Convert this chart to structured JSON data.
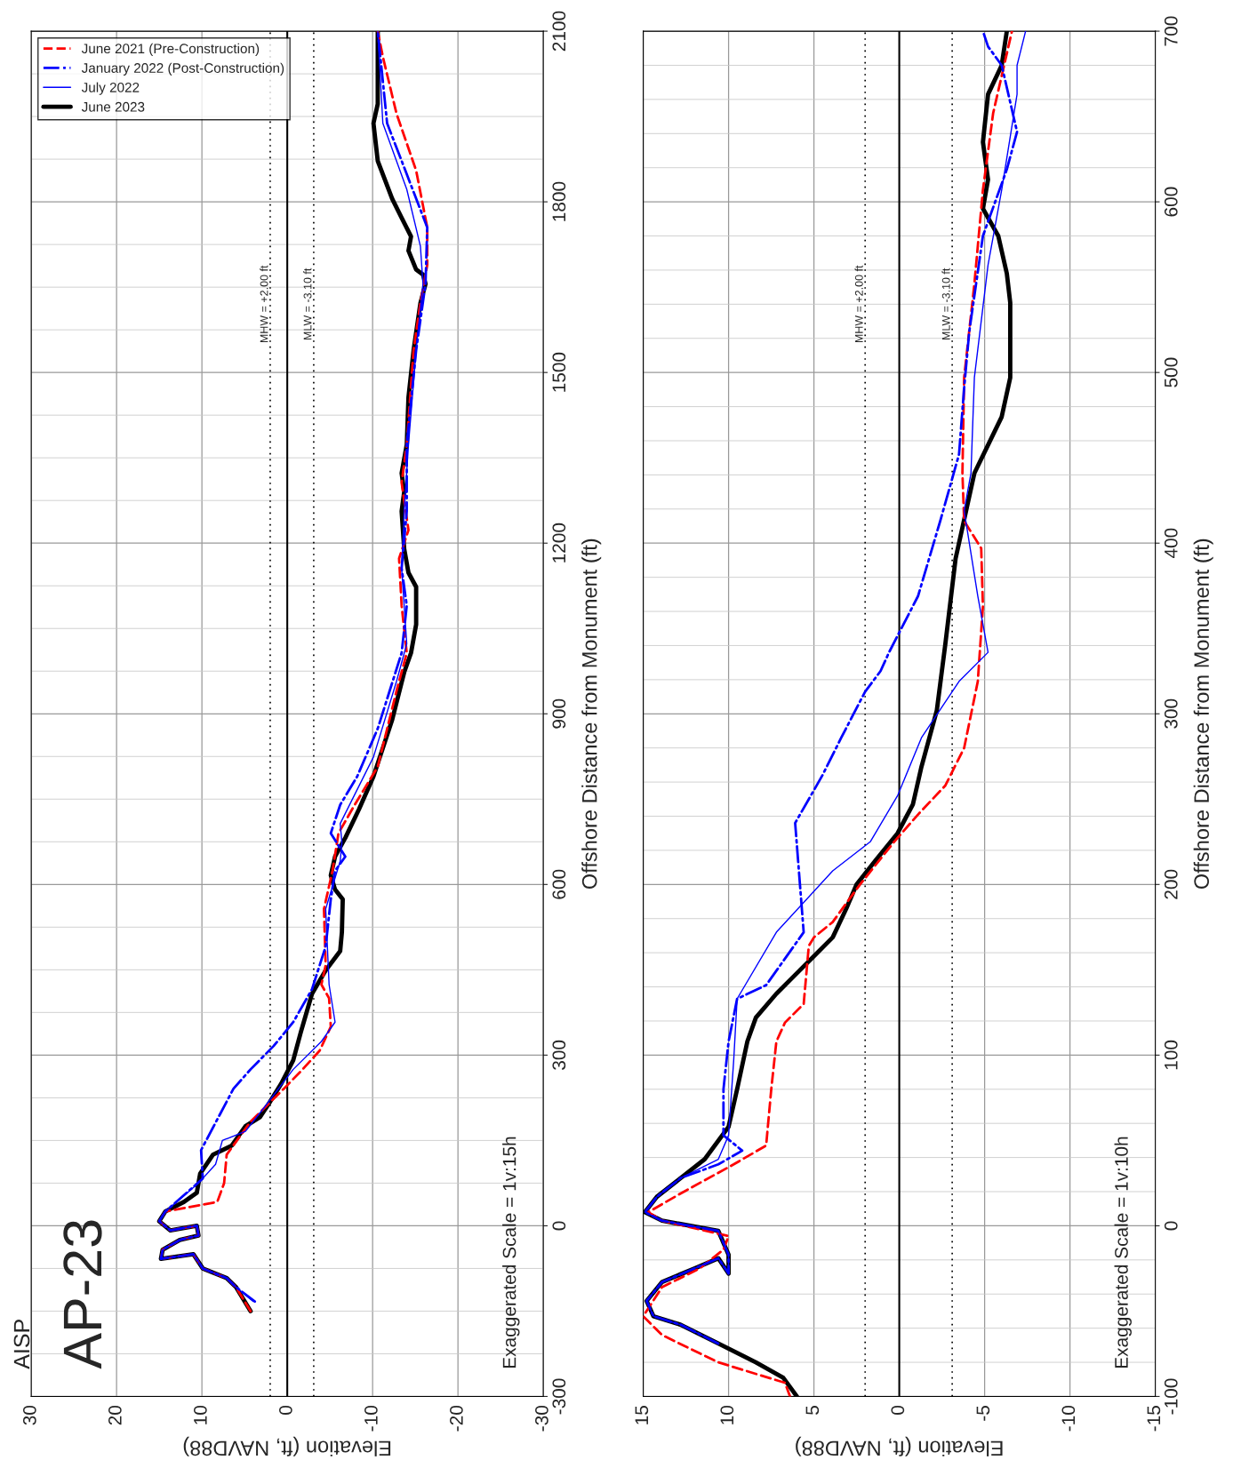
{
  "chart_data": [
    {
      "type": "line",
      "xlabel": "Elevation (ft, NAVD88)",
      "ylabel": "Offshore Distance from Monument (ft)",
      "xlim": [
        30,
        -30
      ],
      "xticks": [
        30,
        20,
        10,
        0,
        -10,
        -20,
        -30
      ],
      "ylim": [
        -300,
        2100
      ],
      "yticks": [
        -300,
        0,
        300,
        600,
        900,
        1200,
        1500,
        1800,
        2100
      ],
      "grid": true,
      "legend": "top left",
      "annotations": [
        "AISP",
        "AP-23",
        "Exaggerated Scale = 1v:15h"
      ],
      "ref_lines": [
        {
          "axis": "x",
          "value": 0,
          "label": null,
          "line_style": "solid"
        },
        {
          "axis": "x",
          "value": 2,
          "label": "MHW = +2.00 ft",
          "line_style": "dotted"
        },
        {
          "axis": "x",
          "value": -3.1,
          "label": "MLW = -3.10 ft",
          "line_style": "dotted"
        }
      ],
      "series": [
        {
          "name": "June 2021 (Pre-Construction)",
          "color": "#ff0000",
          "line_style": "dashed",
          "x": [
            4.3,
            6,
            7.1,
            9.9,
            11,
            14.8,
            14.6,
            12.6,
            10.4,
            10.6,
            13.7,
            15,
            14.3,
            8.2,
            7.4,
            7.1,
            4.3,
            0.4,
            -1.8,
            -3.8,
            -5.1,
            -4.9,
            -4,
            -4.5,
            -4.3,
            -5.3,
            -6,
            -7.9,
            -10.6,
            -12.8,
            -14,
            -13.4,
            -13.1,
            -14.2,
            -13.4,
            -14,
            -14.8,
            -15.6,
            -16.4,
            -16.4,
            -15.1,
            -12.8,
            -11.2,
            -10.6
          ],
          "values": [
            -150,
            -108,
            -92,
            -75,
            -50,
            -58,
            -42,
            -25,
            -17,
            0,
            -8,
            8,
            25,
            42,
            75,
            125,
            183,
            241,
            275,
            308,
            350,
            400,
            424,
            458,
            557,
            624,
            690,
            740,
            807,
            940,
            1007,
            1090,
            1173,
            1223,
            1306,
            1373,
            1539,
            1622,
            1689,
            1755,
            1855,
            1955,
            2055,
            2100
          ]
        },
        {
          "name": "January 2022 (Post-Construction)",
          "color": "#0000ff",
          "line_style": "dashdot",
          "x": [
            3.8,
            6,
            7.1,
            9.9,
            11,
            14.8,
            14.6,
            12.6,
            10.4,
            10.6,
            13.7,
            15,
            14.3,
            9.9,
            10.1,
            6.3,
            4.3,
            1.6,
            -0.7,
            -2.9,
            -4.5,
            -5.1,
            -5.6,
            -6.8,
            -5.1,
            -6.2,
            -8.2,
            -10.6,
            -13.4,
            -14,
            -13.4,
            -14,
            -14,
            -15.1,
            -16.2,
            -16.4,
            -13.4,
            -11.7,
            -10.6
          ],
          "values": [
            -133,
            -108,
            -92,
            -75,
            -50,
            -58,
            -42,
            -25,
            -17,
            0,
            -8,
            8,
            25,
            83,
            133,
            241,
            275,
            316,
            358,
            416,
            491,
            574,
            624,
            649,
            690,
            740,
            790,
            874,
            1007,
            1090,
            1156,
            1256,
            1373,
            1539,
            1656,
            1755,
            1872,
            1938,
            2100
          ]
        },
        {
          "name": "July 2022",
          "color": "#0000ff",
          "line_style": "solid",
          "x": [
            4,
            6,
            7.1,
            9.9,
            11,
            14.8,
            14.6,
            12.6,
            10.4,
            10.6,
            13.7,
            15,
            14.3,
            10.4,
            8.4,
            7.6,
            4.9,
            2.7,
            -0.7,
            -4,
            -5.6,
            -4.9,
            -4.5,
            -6.2,
            -6.4,
            -6.2,
            -10.1,
            -12.8,
            -14,
            -13.4,
            -13.7,
            -14.2,
            -15.1,
            -15.9,
            -15.6,
            -14,
            -11.2,
            -10.6
          ],
          "values": [
            -133,
            -108,
            -92,
            -75,
            -50,
            -58,
            -42,
            -25,
            -17,
            0,
            -8,
            8,
            25,
            75,
            108,
            150,
            166,
            208,
            275,
            324,
            358,
            424,
            557,
            641,
            674,
            707,
            824,
            957,
            1023,
            1156,
            1256,
            1373,
            1539,
            1656,
            1722,
            1822,
            1938,
            2100
          ]
        },
        {
          "name": "June 2023",
          "color": "#000000",
          "line_style": "solid",
          "x": [
            4.3,
            6,
            7.1,
            9.9,
            11,
            14.8,
            14.6,
            12.6,
            10.4,
            10.6,
            13.7,
            15,
            14.3,
            12.1,
            10.6,
            10.2,
            8.7,
            6.5,
            4.9,
            3.2,
            2.1,
            0.7,
            -0.7,
            -1.6,
            -2.9,
            -4.5,
            -6.2,
            -6.4,
            -6.5,
            -5.6,
            -5.1,
            -5.6,
            -6.8,
            -8.4,
            -10.1,
            -11.2,
            -12.3,
            -13.7,
            -14.5,
            -15.1,
            -15.1,
            -14.2,
            -13.7,
            -13.4,
            -13.7,
            -13.4,
            -14,
            -14.2,
            -14.8,
            -15.6,
            -16.2,
            -15.9,
            -15.1,
            -14.2,
            -14.5,
            -13.4,
            -12.3,
            -10.6,
            -10.1,
            -10.6,
            -10.6
          ],
          "values": [
            -150,
            -108,
            -92,
            -75,
            -50,
            -58,
            -42,
            -25,
            -17,
            0,
            -8,
            8,
            25,
            42,
            58,
            92,
            125,
            141,
            175,
            191,
            216,
            250,
            291,
            341,
            408,
            449,
            483,
            516,
            574,
            591,
            616,
            649,
            682,
            732,
            790,
            840,
            890,
            973,
            1007,
            1057,
            1123,
            1148,
            1190,
            1256,
            1290,
            1323,
            1373,
            1456,
            1539,
            1622,
            1656,
            1672,
            1681,
            1714,
            1739,
            1772,
            1805,
            1872,
            1938,
            1972,
            2100
          ]
        }
      ]
    },
    {
      "type": "line",
      "xlabel": "Elevation (ft, NAVD88)",
      "ylabel": "Offshore Distance from Monument (ft)",
      "xlim": [
        15,
        -15
      ],
      "xticks": [
        15,
        10,
        5,
        0,
        -5,
        -10,
        -15
      ],
      "ylim": [
        -100,
        700
      ],
      "yticks": [
        -100,
        0,
        100,
        200,
        300,
        400,
        500,
        600,
        700
      ],
      "grid": true,
      "legend": false,
      "annotations": [
        "Exaggerated Scale = 1v:10h"
      ],
      "ref_lines": [
        {
          "axis": "x",
          "value": 0,
          "label": null,
          "line_style": "solid"
        },
        {
          "axis": "x",
          "value": 2,
          "label": "MHW = +2.00 ft",
          "line_style": "dotted"
        },
        {
          "axis": "x",
          "value": -3.1,
          "label": "MLW = -3.10 ft",
          "line_style": "dotted"
        }
      ],
      "series": [
        {
          "color": "#ff0000",
          "line_style": "dashed",
          "x": [
            6.4,
            6.7,
            10.6,
            13.9,
            15,
            13.9,
            11.7,
            10.3,
            10,
            13.9,
            14.7,
            12.8,
            9.7,
            7.8,
            7.5,
            7.2,
            6.7,
            5.6,
            5.3,
            5,
            3.9,
            2.3,
            0.3,
            -1.1,
            -2.7,
            -3.8,
            -4.6,
            -4.9,
            -4.8,
            -3.8,
            -3.7,
            -3.8,
            -4.4,
            -4.9,
            -5.5,
            -6.6
          ],
          "values": [
            -100,
            -92,
            -80,
            -64,
            -53,
            -36,
            -25,
            -14,
            -6,
            3,
            8,
            19,
            36,
            47,
            80,
            108,
            119,
            130,
            164,
            169,
            178,
            200,
            225,
            241,
            258,
            280,
            319,
            363,
            397,
            413,
            441,
            497,
            552,
            607,
            652,
            700
          ]
        },
        {
          "color": "#0000ff",
          "line_style": "dashdot",
          "x": [
            10.6,
            12.8,
            14.4,
            14.8,
            13.9,
            12,
            10.6,
            10,
            10,
            10.6,
            13.9,
            14.9,
            14.2,
            12.8,
            10.6,
            9.2,
            10.3,
            10.3,
            10,
            9.5,
            7.8,
            5.6,
            6.1,
            4.5,
            3.4,
            2,
            1.1,
            0.6,
            -1.1,
            -2.4,
            -3.5,
            -3.8,
            -4.1,
            -4.9,
            -6.3,
            -6.9,
            -6,
            -5.2,
            -4.9
          ],
          "values": [
            -69,
            -58,
            -53,
            -44,
            -33,
            -25,
            -19,
            -28,
            -17,
            -3,
            3,
            8,
            17,
            28,
            36,
            44,
            53,
            80,
            108,
            133,
            141,
            172,
            236,
            264,
            286,
            313,
            325,
            336,
            369,
            413,
            452,
            491,
            524,
            580,
            619,
            641,
            680,
            691,
            700
          ]
        },
        {
          "color": "#0000ff",
          "line_style": "solid",
          "x": [
            10.6,
            12.8,
            14.4,
            14.8,
            13.9,
            12,
            10.6,
            10,
            10,
            10.6,
            13.9,
            14.9,
            14.2,
            12.8,
            10.6,
            10,
            9.7,
            9.5,
            7.2,
            3.9,
            1.7,
            0.1,
            -1.3,
            -3.5,
            -5.2,
            -4.6,
            -3.8,
            -4.2,
            -4.4,
            -5.2,
            -6,
            -6.9,
            -6.9,
            -7.4
          ],
          "values": [
            -69,
            -58,
            -53,
            -44,
            -33,
            -25,
            -19,
            -28,
            -17,
            -3,
            3,
            8,
            17,
            28,
            39,
            53,
            97,
            133,
            172,
            208,
            225,
            252,
            286,
            319,
            336,
            369,
            419,
            441,
            497,
            563,
            607,
            663,
            680,
            700
          ]
        },
        {
          "color": "#000000",
          "line_style": "solid",
          "x": [
            6,
            6.8,
            8.4,
            10.6,
            12.8,
            14.4,
            14.8,
            13.9,
            12,
            10.6,
            10,
            10,
            10.6,
            13.9,
            14.9,
            14.2,
            12.8,
            11.4,
            10,
            9.5,
            8.9,
            8.4,
            7.2,
            6.1,
            5,
            3.9,
            3.1,
            2.5,
            1.4,
            0.1,
            -0.8,
            -1.3,
            -2.2,
            -2.7,
            -3.3,
            -4.4,
            -6,
            -6.5,
            -6.5,
            -6.3,
            -5.8,
            -4.9,
            -5.2,
            -4.9,
            -5.2,
            -6,
            -6.3
          ],
          "values": [
            -100,
            -89,
            -80,
            -69,
            -58,
            -53,
            -44,
            -33,
            -25,
            -19,
            -28,
            -17,
            -3,
            3,
            8,
            17,
            28,
            39,
            58,
            80,
            108,
            122,
            136,
            147,
            158,
            169,
            186,
            200,
            214,
            230,
            247,
            269,
            302,
            341,
            391,
            441,
            474,
            497,
            541,
            558,
            580,
            596,
            613,
            635,
            663,
            680,
            700
          ]
        }
      ]
    }
  ]
}
